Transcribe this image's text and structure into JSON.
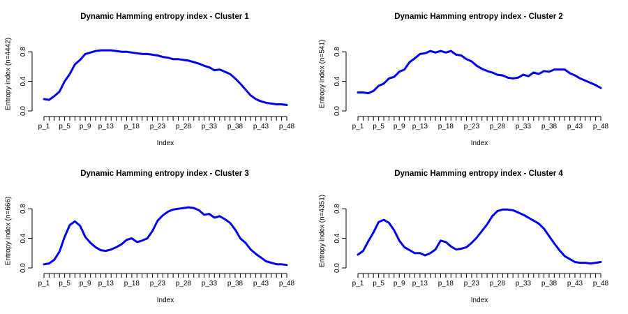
{
  "colors": {
    "series": "#0000ee",
    "axis": "#000000",
    "background": "#ffffff"
  },
  "chart_data": [
    {
      "type": "line",
      "title": "Dynamic Hamming entropy index - Cluster 1",
      "xlabel": "Index",
      "ylabel": "Entropy index (n=4442)",
      "xlim": [
        1,
        48
      ],
      "ylim": [
        0,
        1
      ],
      "yticks": [
        "0.0",
        "0.4",
        "0.8"
      ],
      "ytick_values": [
        0,
        0.4,
        0.8
      ],
      "xtick_labels": [
        "p_1",
        "p_5",
        "p_9",
        "p_13",
        "p_18",
        "p_23",
        "p_28",
        "p_33",
        "p_38",
        "p_43",
        "p_48"
      ],
      "xtick_positions": [
        1,
        5,
        9,
        13,
        18,
        23,
        28,
        33,
        38,
        43,
        48
      ],
      "values": [
        0.16,
        0.15,
        0.2,
        0.26,
        0.4,
        0.5,
        0.63,
        0.69,
        0.77,
        0.79,
        0.81,
        0.82,
        0.82,
        0.82,
        0.81,
        0.8,
        0.8,
        0.79,
        0.78,
        0.77,
        0.77,
        0.76,
        0.75,
        0.73,
        0.72,
        0.7,
        0.7,
        0.69,
        0.68,
        0.66,
        0.64,
        0.61,
        0.59,
        0.55,
        0.56,
        0.53,
        0.5,
        0.44,
        0.37,
        0.29,
        0.21,
        0.16,
        0.13,
        0.11,
        0.1,
        0.09,
        0.09,
        0.08
      ]
    },
    {
      "type": "line",
      "title": "Dynamic Hamming entropy index - Cluster 2",
      "xlabel": "Index",
      "ylabel": "Entropy index (n=541)",
      "xlim": [
        1,
        48
      ],
      "ylim": [
        0,
        1
      ],
      "yticks": [
        "0.0",
        "0.4",
        "0.8"
      ],
      "ytick_values": [
        0,
        0.4,
        0.8
      ],
      "xtick_labels": [
        "p_1",
        "p_5",
        "p_9",
        "p_13",
        "p_18",
        "p_23",
        "p_28",
        "p_33",
        "p_38",
        "p_43",
        "p_48"
      ],
      "xtick_positions": [
        1,
        5,
        9,
        13,
        18,
        23,
        28,
        33,
        38,
        43,
        48
      ],
      "values": [
        0.25,
        0.25,
        0.24,
        0.27,
        0.34,
        0.37,
        0.44,
        0.46,
        0.53,
        0.56,
        0.66,
        0.71,
        0.77,
        0.78,
        0.81,
        0.79,
        0.81,
        0.79,
        0.81,
        0.76,
        0.75,
        0.7,
        0.67,
        0.61,
        0.57,
        0.54,
        0.52,
        0.49,
        0.48,
        0.45,
        0.44,
        0.45,
        0.49,
        0.47,
        0.52,
        0.5,
        0.54,
        0.53,
        0.56,
        0.56,
        0.56,
        0.51,
        0.48,
        0.44,
        0.41,
        0.38,
        0.35,
        0.31
      ]
    },
    {
      "type": "line",
      "title": "Dynamic Hamming entropy index - Cluster 3",
      "xlabel": "Index",
      "ylabel": "Entropy index (n=666)",
      "xlim": [
        1,
        48
      ],
      "ylim": [
        0,
        1
      ],
      "yticks": [
        "0.0",
        "0.4",
        "0.8"
      ],
      "ytick_values": [
        0,
        0.4,
        0.8
      ],
      "xtick_labels": [
        "p_1",
        "p_5",
        "p_9",
        "p_13",
        "p_18",
        "p_23",
        "p_28",
        "p_33",
        "p_38",
        "p_43",
        "p_48"
      ],
      "xtick_positions": [
        1,
        5,
        9,
        13,
        18,
        23,
        28,
        33,
        38,
        43,
        48
      ],
      "values": [
        0.05,
        0.06,
        0.11,
        0.22,
        0.42,
        0.58,
        0.63,
        0.57,
        0.42,
        0.34,
        0.28,
        0.24,
        0.23,
        0.25,
        0.28,
        0.32,
        0.38,
        0.4,
        0.35,
        0.37,
        0.4,
        0.5,
        0.64,
        0.71,
        0.76,
        0.79,
        0.8,
        0.81,
        0.82,
        0.81,
        0.78,
        0.72,
        0.73,
        0.68,
        0.7,
        0.66,
        0.61,
        0.52,
        0.4,
        0.34,
        0.25,
        0.19,
        0.14,
        0.09,
        0.07,
        0.05,
        0.05,
        0.04
      ]
    },
    {
      "type": "line",
      "title": "Dynamic Hamming entropy index - Cluster 4",
      "xlabel": "Index",
      "ylabel": "Entropy index (n=4351)",
      "xlim": [
        1,
        48
      ],
      "ylim": [
        0,
        1
      ],
      "yticks": [
        "0.0",
        "0.4",
        "0.8"
      ],
      "ytick_values": [
        0,
        0.4,
        0.8
      ],
      "xtick_labels": [
        "p_1",
        "p_5",
        "p_9",
        "p_13",
        "p_18",
        "p_23",
        "p_28",
        "p_33",
        "p_38",
        "p_43",
        "p_48"
      ],
      "xtick_positions": [
        1,
        5,
        9,
        13,
        18,
        23,
        28,
        33,
        38,
        43,
        48
      ],
      "values": [
        0.18,
        0.23,
        0.36,
        0.48,
        0.62,
        0.65,
        0.61,
        0.51,
        0.37,
        0.28,
        0.24,
        0.2,
        0.2,
        0.17,
        0.2,
        0.25,
        0.37,
        0.35,
        0.29,
        0.25,
        0.26,
        0.28,
        0.34,
        0.41,
        0.5,
        0.59,
        0.7,
        0.77,
        0.79,
        0.79,
        0.78,
        0.75,
        0.72,
        0.68,
        0.64,
        0.6,
        0.53,
        0.43,
        0.33,
        0.24,
        0.16,
        0.12,
        0.08,
        0.07,
        0.07,
        0.06,
        0.07,
        0.08
      ]
    }
  ]
}
